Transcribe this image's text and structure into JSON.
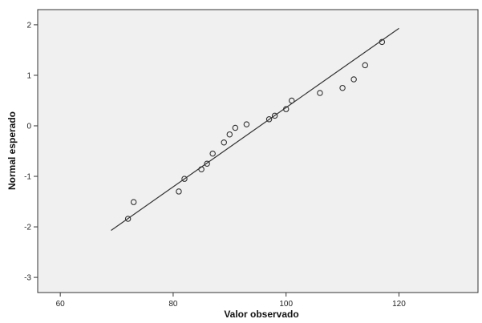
{
  "chart_data": {
    "type": "scatter",
    "xlabel": "Valor observado",
    "ylabel": "Normal esperado",
    "xlim": [
      56,
      134
    ],
    "ylim": [
      -3.3,
      2.3
    ],
    "x_ticks": [
      60,
      80,
      100,
      120
    ],
    "y_ticks": [
      2,
      1,
      0,
      -1,
      -2,
      -3
    ],
    "grid": false,
    "colors": {
      "plot_background": "#f0f0f0",
      "marker": "#333333",
      "line": "#333333"
    },
    "points": [
      {
        "x": 72,
        "y": -1.84
      },
      {
        "x": 73,
        "y": -1.51
      },
      {
        "x": 81,
        "y": -1.3
      },
      {
        "x": 82,
        "y": -1.05
      },
      {
        "x": 85,
        "y": -0.86
      },
      {
        "x": 86,
        "y": -0.75
      },
      {
        "x": 87,
        "y": -0.55
      },
      {
        "x": 89,
        "y": -0.33
      },
      {
        "x": 90,
        "y": -0.17
      },
      {
        "x": 91,
        "y": -0.04
      },
      {
        "x": 93,
        "y": 0.03
      },
      {
        "x": 97,
        "y": 0.13
      },
      {
        "x": 98,
        "y": 0.2
      },
      {
        "x": 100,
        "y": 0.33
      },
      {
        "x": 101,
        "y": 0.5
      },
      {
        "x": 106,
        "y": 0.65
      },
      {
        "x": 110,
        "y": 0.75
      },
      {
        "x": 112,
        "y": 0.92
      },
      {
        "x": 114,
        "y": 1.2
      },
      {
        "x": 117,
        "y": 1.66
      }
    ],
    "reference_line": {
      "x": [
        69,
        120
      ],
      "y": [
        -2.07,
        1.93
      ]
    }
  }
}
